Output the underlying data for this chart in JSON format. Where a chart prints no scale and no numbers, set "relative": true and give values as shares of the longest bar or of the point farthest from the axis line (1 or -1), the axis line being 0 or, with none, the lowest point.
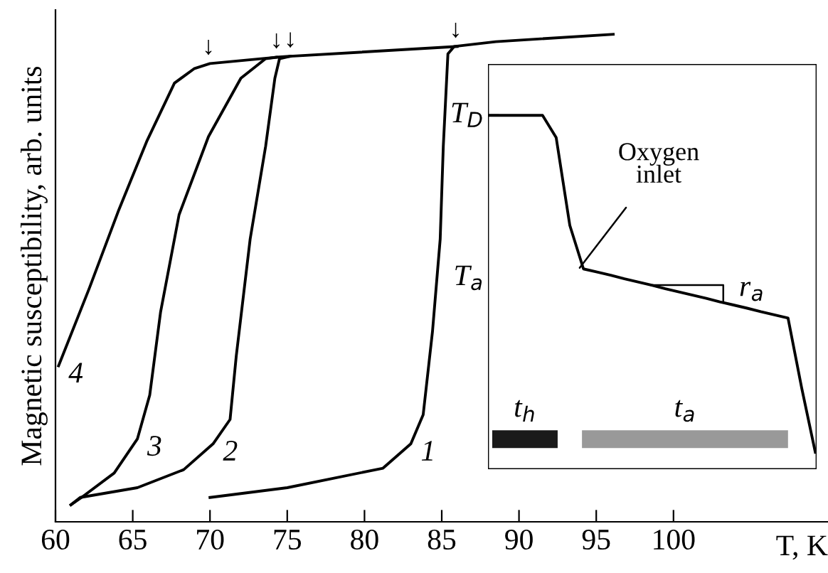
{
  "chart_data": [
    {
      "type": "line",
      "xlabel": "T, K",
      "ylabel": "Magnetic susceptibility, arb. units",
      "relative": true,
      "xlim": [
        60,
        110
      ],
      "xticks": [
        60,
        65,
        70,
        75,
        80,
        85,
        90,
        95,
        100
      ],
      "series": [
        {
          "name": "1",
          "color": "#000000",
          "x": [
            70.0,
            75.0,
            81.2,
            83.0,
            83.8,
            84.4,
            84.9,
            85.1,
            85.4,
            85.8,
            88.5,
            96.1
          ],
          "values": [
            0.05,
            0.07,
            0.11,
            0.16,
            0.22,
            0.39,
            0.58,
            0.77,
            0.96,
            0.975,
            0.985,
            1.0
          ]
        },
        {
          "name": "2",
          "color": "#000000",
          "x": [
            61.0,
            61.6,
            65.3,
            68.3,
            70.2,
            71.3,
            71.7,
            72.6,
            73.6,
            74.2,
            74.5,
            75.2,
            86.0
          ],
          "values": [
            0.035,
            0.05,
            0.07,
            0.107,
            0.16,
            0.21,
            0.34,
            0.58,
            0.77,
            0.91,
            0.95,
            0.955,
            0.975
          ]
        },
        {
          "name": "3",
          "color": "#000000",
          "x": [
            61.0,
            61.9,
            63.8,
            65.3,
            66.1,
            66.8,
            68.0,
            69.9,
            72.0,
            73.6,
            74.3,
            75.2
          ],
          "values": [
            0.035,
            0.055,
            0.1,
            0.17,
            0.26,
            0.43,
            0.63,
            0.79,
            0.91,
            0.95,
            0.953,
            0.955
          ]
        },
        {
          "name": "4",
          "color": "#000000",
          "x": [
            60.2,
            62.2,
            64.1,
            65.9,
            67.7,
            69.0,
            70.0,
            74.3
          ],
          "values": [
            0.32,
            0.48,
            0.64,
            0.78,
            0.9,
            0.93,
            0.94,
            0.953
          ]
        }
      ],
      "annotations": [
        {
          "text": "↓",
          "x": 69.9,
          "y": 0.94
        },
        {
          "text": "↓",
          "x": 74.3,
          "y": 0.953
        },
        {
          "text": "↓",
          "x": 75.2,
          "y": 0.955
        },
        {
          "text": "↓",
          "x": 85.9,
          "y": 0.975
        }
      ]
    },
    {
      "type": "line",
      "relative": true,
      "categories": [
        null,
        null,
        null,
        null,
        null,
        null,
        null,
        null,
        null,
        null,
        null,
        null,
        null,
        null,
        null,
        null,
        null,
        null,
        null,
        null,
        null,
        null,
        null,
        null,
        null
      ],
      "series": [
        {
          "color": "#000000",
          "values": [
            1.0,
            1.0,
            1.0,
            1.0,
            1.0,
            0.937,
            0.689,
            0.566,
            0.557,
            0.548,
            0.538,
            0.529,
            0.52,
            0.51,
            0.501,
            0.492,
            0.483,
            0.473,
            0.464,
            0.455,
            0.445,
            0.436,
            0.427,
            0.23,
            0.048
          ]
        }
      ],
      "annotations": [
        "T$_{D}$",
        "T$_{a}$",
        "Oxygen\ninlet",
        "r$_{a}$",
        "t$_{h}$",
        "t$_{a}$"
      ]
    }
  ]
}
